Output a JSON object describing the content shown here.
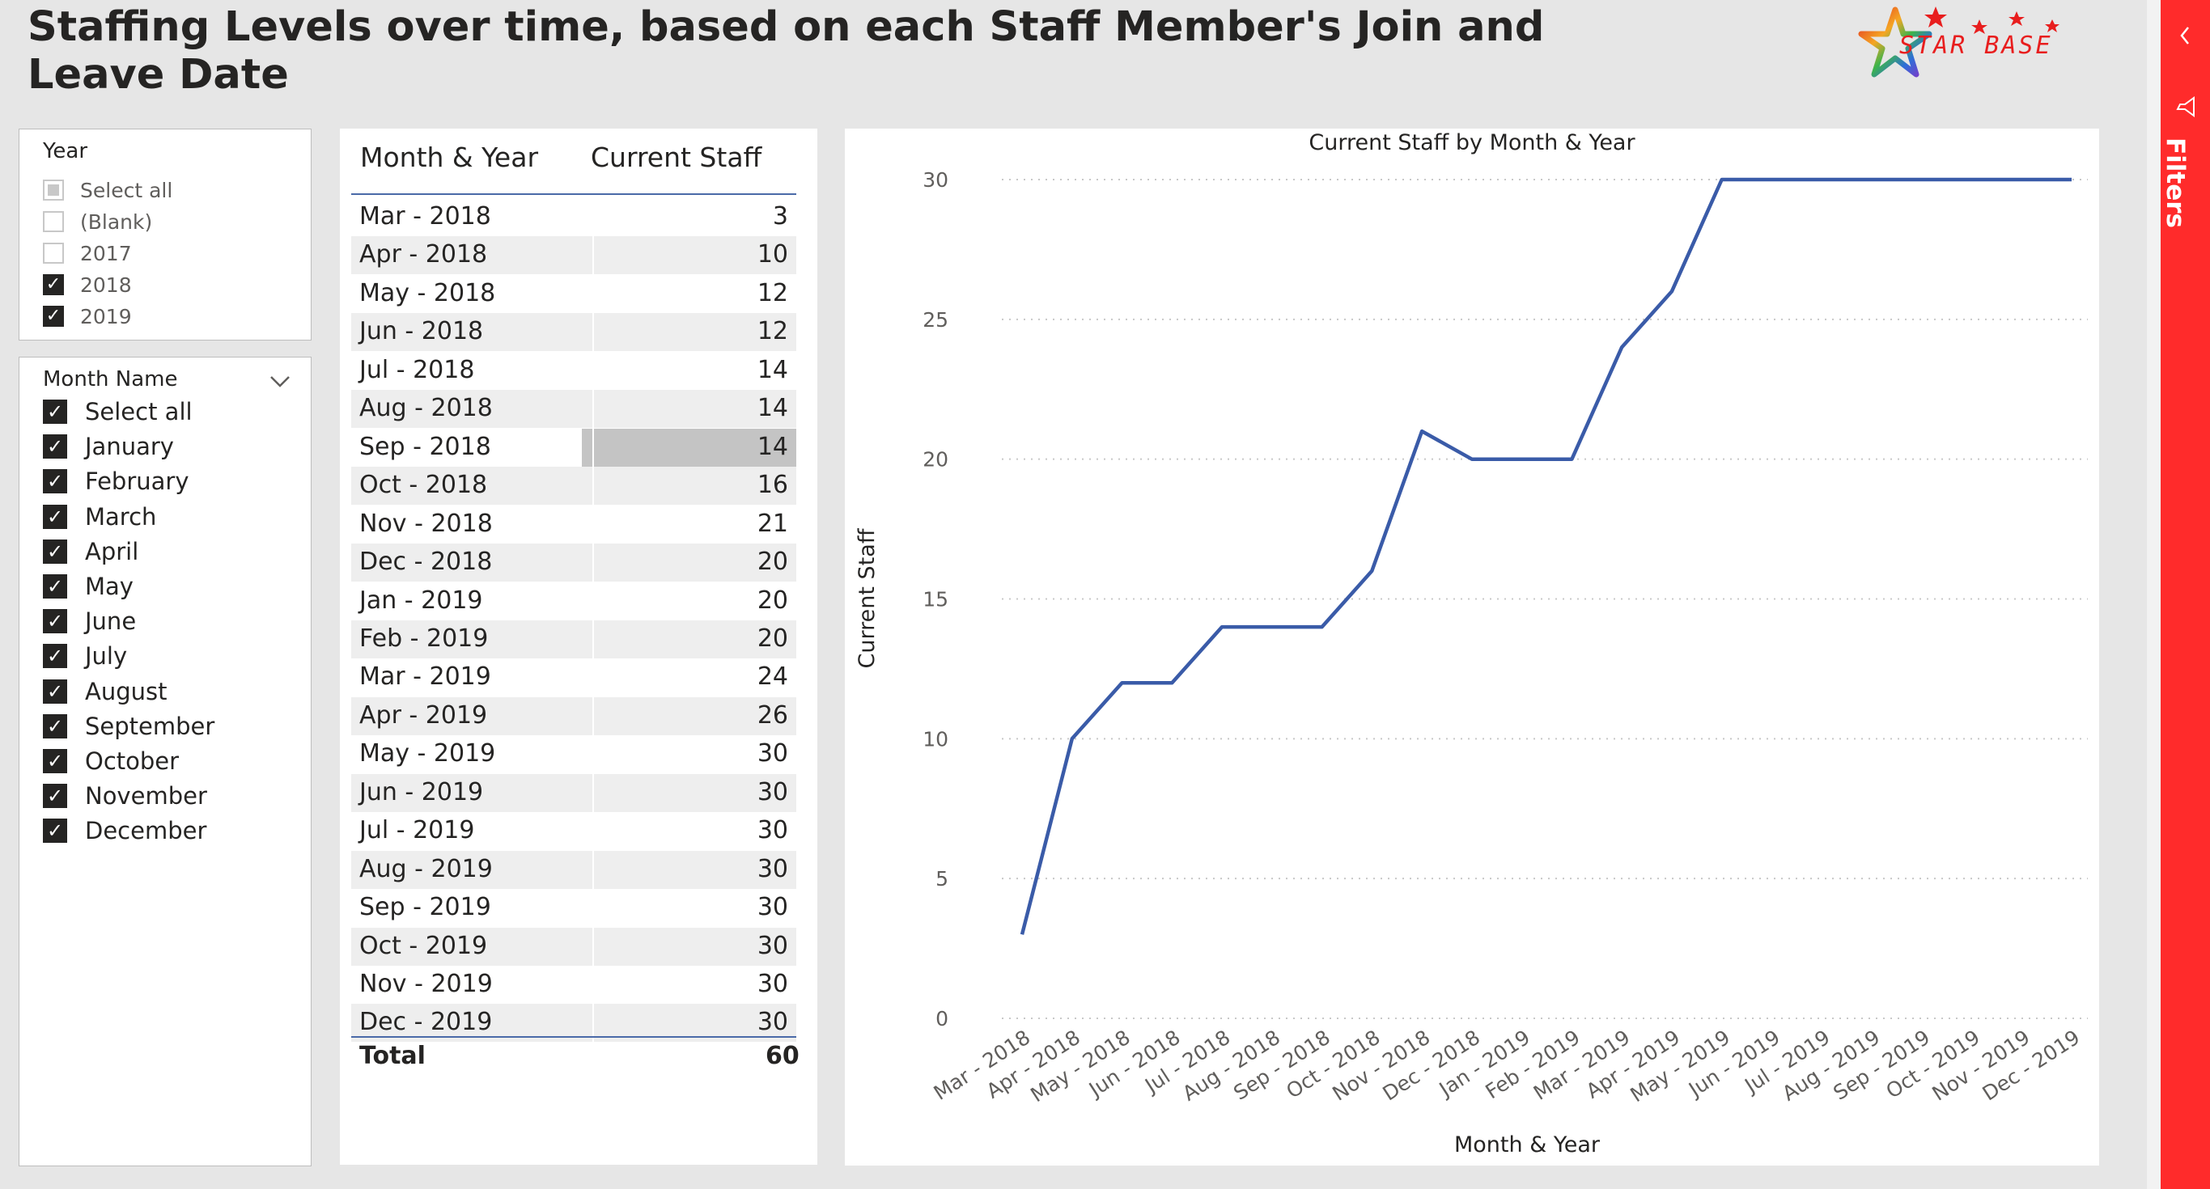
{
  "report": {
    "title": "Staffing Levels over time, based on each Staff Member's Join and Leave Date",
    "logo_text": "STAR BASE"
  },
  "year_slicer": {
    "header": "Year",
    "items": [
      {
        "label": "Select all",
        "state": "partial"
      },
      {
        "label": "(Blank)",
        "state": "unchecked"
      },
      {
        "label": "2017",
        "state": "unchecked"
      },
      {
        "label": "2018",
        "state": "checked"
      },
      {
        "label": "2019",
        "state": "checked"
      }
    ]
  },
  "month_slicer": {
    "header": "Month Name",
    "items": [
      {
        "label": "Select all",
        "state": "checked"
      },
      {
        "label": "January",
        "state": "checked"
      },
      {
        "label": "February",
        "state": "checked"
      },
      {
        "label": "March",
        "state": "checked"
      },
      {
        "label": "April",
        "state": "checked"
      },
      {
        "label": "May",
        "state": "checked"
      },
      {
        "label": "June",
        "state": "checked"
      },
      {
        "label": "July",
        "state": "checked"
      },
      {
        "label": "August",
        "state": "checked"
      },
      {
        "label": "September",
        "state": "checked"
      },
      {
        "label": "October",
        "state": "checked"
      },
      {
        "label": "November",
        "state": "checked"
      },
      {
        "label": "December",
        "state": "checked"
      }
    ]
  },
  "table": {
    "columns": [
      "Month & Year",
      "Current Staff"
    ],
    "rows": [
      {
        "month": "Mar - 2018",
        "staff": "3"
      },
      {
        "month": "Apr - 2018",
        "staff": "10"
      },
      {
        "month": "May - 2018",
        "staff": "12"
      },
      {
        "month": "Jun - 2018",
        "staff": "12"
      },
      {
        "month": "Jul - 2018",
        "staff": "14"
      },
      {
        "month": "Aug - 2018",
        "staff": "14"
      },
      {
        "month": "Sep - 2018",
        "staff": "14"
      },
      {
        "month": "Oct - 2018",
        "staff": "16"
      },
      {
        "month": "Nov - 2018",
        "staff": "21"
      },
      {
        "month": "Dec - 2018",
        "staff": "20"
      },
      {
        "month": "Jan - 2019",
        "staff": "20"
      },
      {
        "month": "Feb - 2019",
        "staff": "20"
      },
      {
        "month": "Mar - 2019",
        "staff": "24"
      },
      {
        "month": "Apr - 2019",
        "staff": "26"
      },
      {
        "month": "May - 2019",
        "staff": "30"
      },
      {
        "month": "Jun - 2019",
        "staff": "30"
      },
      {
        "month": "Jul - 2019",
        "staff": "30"
      },
      {
        "month": "Aug - 2019",
        "staff": "30"
      },
      {
        "month": "Sep - 2019",
        "staff": "30"
      },
      {
        "month": "Oct - 2019",
        "staff": "30"
      },
      {
        "month": "Nov - 2019",
        "staff": "30"
      },
      {
        "month": "Dec - 2019",
        "staff": "30"
      }
    ],
    "selected_row": 6,
    "total_label": "Total",
    "total_value": "60"
  },
  "chart_data": {
    "type": "line",
    "title": "Current Staff by Month & Year",
    "xlabel": "Month & Year",
    "ylabel": "Current Staff",
    "categories": [
      "Mar - 2018",
      "Apr - 2018",
      "May - 2018",
      "Jun - 2018",
      "Jul - 2018",
      "Aug - 2018",
      "Sep - 2018",
      "Oct - 2018",
      "Nov - 2018",
      "Dec - 2018",
      "Jan - 2019",
      "Feb - 2019",
      "Mar - 2019",
      "Apr - 2019",
      "May - 2019",
      "Jun - 2019",
      "Jul - 2019",
      "Aug - 2019",
      "Sep - 2019",
      "Oct - 2019",
      "Nov - 2019",
      "Dec - 2019"
    ],
    "series": [
      {
        "values": [
          3,
          10,
          12,
          12,
          14,
          14,
          14,
          16,
          21,
          20,
          20,
          20,
          24,
          26,
          30,
          30,
          30,
          30,
          30,
          30,
          30,
          30
        ]
      }
    ],
    "ylim": [
      0,
      30
    ],
    "yticks": [
      0,
      5,
      10,
      15,
      20,
      25,
      30
    ],
    "grid": true,
    "legend": "none",
    "line_color": "#3a5ba8"
  },
  "filters_pane": {
    "label": "Filters"
  },
  "colors": {
    "filters_red": "#ff2b2b",
    "accent_blue": "#3a5ba8",
    "background": "#e6e6e6"
  }
}
